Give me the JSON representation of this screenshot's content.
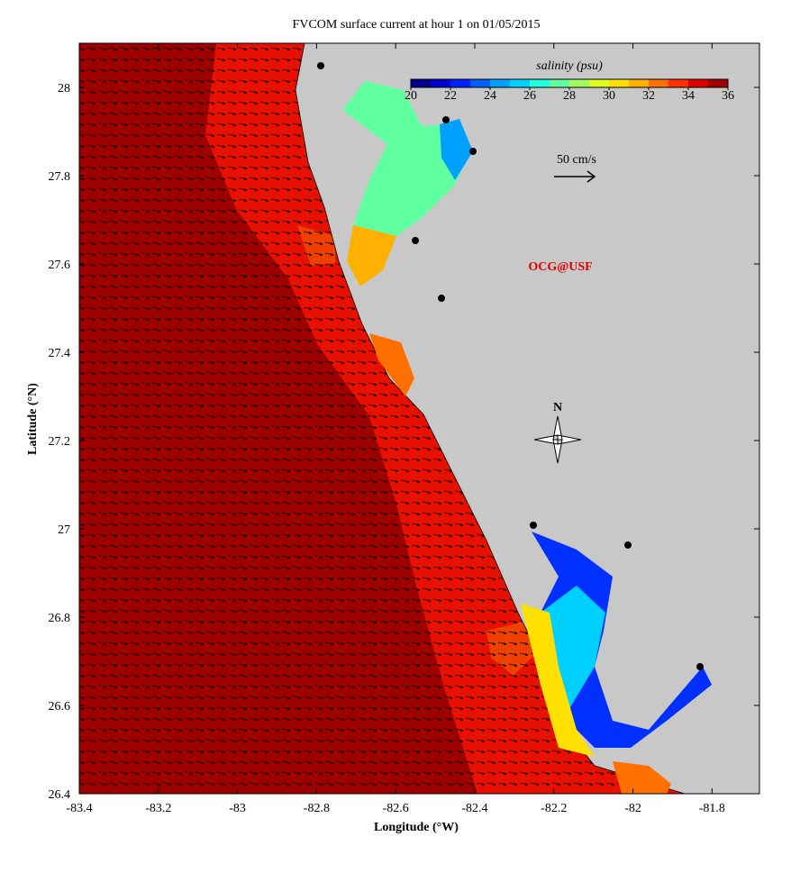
{
  "chart_data": {
    "type": "map",
    "title": "FVCOM surface current at hour 1 on 01/05/2015",
    "xlabel": "Longitude (°W)",
    "ylabel": "Latitude (°N)",
    "xlim": [
      -83.4,
      -81.68
    ],
    "ylim": [
      26.4,
      28.1
    ],
    "xticks": [
      -83.4,
      -83.2,
      -83,
      -82.8,
      -82.6,
      -82.4,
      -82.2,
      -82,
      -81.8
    ],
    "yticks": [
      26.4,
      26.6,
      26.8,
      27,
      27.2,
      27.4,
      27.6,
      27.8,
      28
    ],
    "colorbar": {
      "label": "salinity (psu)",
      "lim": [
        20,
        36
      ],
      "ticks": [
        20,
        22,
        24,
        26,
        28,
        30,
        32,
        34,
        36
      ],
      "colors": [
        "#00008f",
        "#0000cf",
        "#0020ff",
        "#0060ff",
        "#00a0ff",
        "#00d0ff",
        "#20ffdf",
        "#60ffa0",
        "#a0ff60",
        "#dfff20",
        "#ffe000",
        "#ffb000",
        "#ff7000",
        "#ff3000",
        "#e00000",
        "#a00000"
      ]
    },
    "scale_label": "50 cm/s",
    "credit": "OCG@USF",
    "north_label": "N"
  }
}
